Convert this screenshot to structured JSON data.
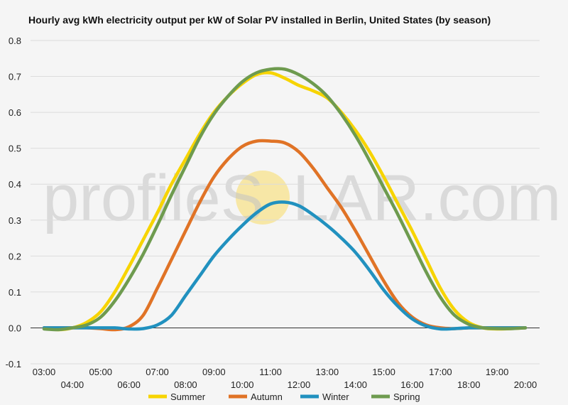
{
  "chart_data": {
    "type": "line",
    "title": "Hourly avg kWh electricity output per kW of Solar PV installed in Berlin, United States (by season)",
    "watermark": {
      "left": "profileS",
      "right": "LAR.com",
      "sun_color": "#f7e7a6"
    },
    "x_labels_top": [
      "03:00",
      "05:00",
      "07:00",
      "09:00",
      "11:00",
      "13:00",
      "15:00",
      "17:00",
      "19:00"
    ],
    "x_labels_bottom": [
      "04:00",
      "06:00",
      "08:00",
      "10:00",
      "12:00",
      "14:00",
      "16:00",
      "18:00",
      "20:00"
    ],
    "x": [
      3,
      3.5,
      4,
      4.5,
      5,
      5.5,
      6,
      6.5,
      7,
      7.5,
      8,
      8.5,
      9,
      9.5,
      10,
      10.5,
      11,
      11.5,
      12,
      12.5,
      13,
      13.5,
      14,
      14.5,
      15,
      15.5,
      16,
      16.5,
      17,
      17.5,
      18,
      18.5,
      19,
      19.5,
      20
    ],
    "xlim": [
      3,
      20
    ],
    "ylim": [
      -0.1,
      0.8
    ],
    "y_ticks": [
      -0.1,
      0.0,
      0.1,
      0.2,
      0.3,
      0.4,
      0.5,
      0.6,
      0.7,
      0.8
    ],
    "y_tick_labels": [
      "-0.1",
      "0.0",
      "0.1",
      "0.2",
      "0.3",
      "0.4",
      "0.5",
      "0.6",
      "0.7",
      "0.8"
    ],
    "series": [
      {
        "name": "Summer",
        "color": "#f7d400",
        "values": [
          0,
          -0.005,
          0,
          0.015,
          0.045,
          0.1,
          0.17,
          0.245,
          0.32,
          0.4,
          0.47,
          0.54,
          0.6,
          0.645,
          0.68,
          0.705,
          0.71,
          0.695,
          0.675,
          0.66,
          0.64,
          0.6,
          0.55,
          0.49,
          0.42,
          0.345,
          0.27,
          0.19,
          0.11,
          0.05,
          0.015,
          0,
          -0.003,
          -0.002,
          0
        ]
      },
      {
        "name": "Autumn",
        "color": "#e07326",
        "values": [
          0,
          0,
          0,
          0,
          -0.002,
          -0.005,
          0.003,
          0.035,
          0.11,
          0.19,
          0.27,
          0.35,
          0.42,
          0.47,
          0.505,
          0.52,
          0.52,
          0.515,
          0.49,
          0.445,
          0.39,
          0.335,
          0.27,
          0.2,
          0.13,
          0.07,
          0.03,
          0.008,
          0,
          -0.002,
          0,
          0,
          0,
          0,
          0
        ]
      },
      {
        "name": "Winter",
        "color": "#2191bf",
        "values": [
          0,
          0,
          0,
          0,
          0,
          0,
          -0.003,
          -0.002,
          0.008,
          0.035,
          0.09,
          0.145,
          0.2,
          0.245,
          0.285,
          0.32,
          0.345,
          0.35,
          0.34,
          0.315,
          0.285,
          0.25,
          0.21,
          0.16,
          0.105,
          0.06,
          0.025,
          0.005,
          -0.003,
          -0.002,
          0,
          0,
          0,
          0,
          0
        ]
      },
      {
        "name": "Spring",
        "color": "#6e9b4f",
        "values": [
          -0.003,
          -0.005,
          0,
          0.008,
          0.03,
          0.075,
          0.135,
          0.205,
          0.285,
          0.37,
          0.45,
          0.53,
          0.595,
          0.645,
          0.685,
          0.71,
          0.72,
          0.72,
          0.705,
          0.68,
          0.645,
          0.595,
          0.535,
          0.465,
          0.39,
          0.315,
          0.235,
          0.155,
          0.085,
          0.035,
          0.01,
          0,
          -0.002,
          -0.002,
          0
        ]
      }
    ],
    "legend_position": "bottom",
    "grid": true
  }
}
